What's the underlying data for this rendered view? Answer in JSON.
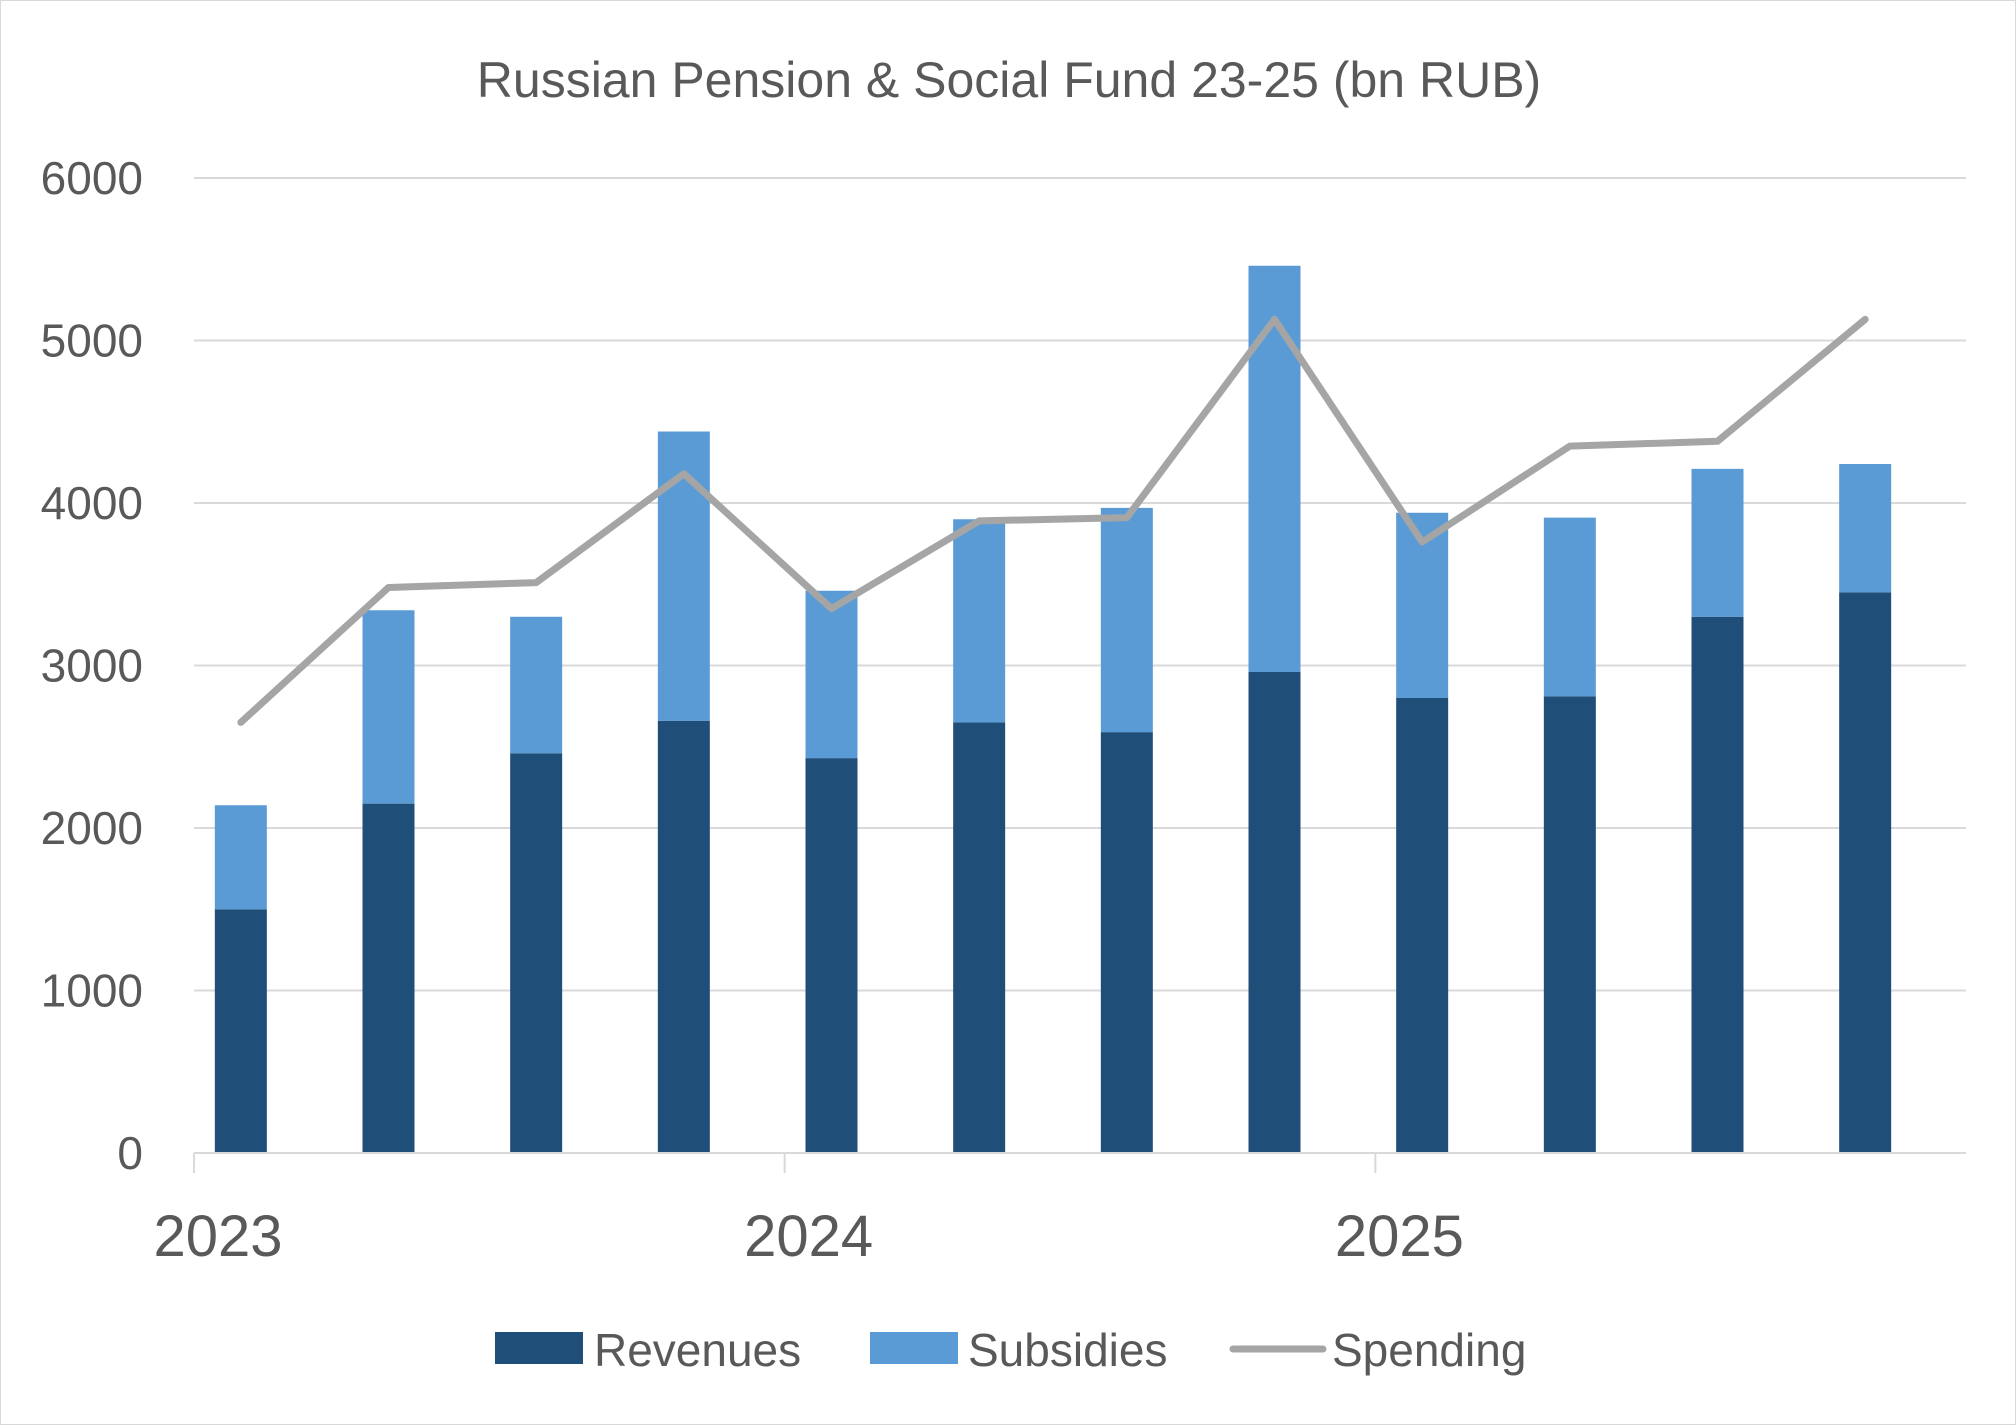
{
  "chart_data": {
    "type": "bar",
    "stacked": true,
    "title": "Russian Pension & Social Fund 23-25 (bn RUB)",
    "xlabel": "",
    "ylabel": "",
    "ylim": [
      0,
      6000
    ],
    "yticks": [
      0,
      1000,
      2000,
      3000,
      4000,
      5000,
      6000
    ],
    "x_tick_labels": [
      "2023",
      "2024",
      "2025"
    ],
    "periods": 12,
    "grid": true,
    "legend_position": "bottom",
    "series": [
      {
        "name": "Revenues",
        "kind": "bar",
        "color": "#1f4e79",
        "values": [
          1500,
          2150,
          2460,
          2660,
          2430,
          2650,
          2590,
          2960,
          2800,
          2810,
          3300,
          3450
        ]
      },
      {
        "name": "Subsidies",
        "kind": "bar",
        "color": "#5b9bd5",
        "values": [
          640,
          1190,
          840,
          1780,
          1030,
          1250,
          1380,
          2500,
          1140,
          1100,
          910,
          790
        ]
      },
      {
        "name": "Spending",
        "kind": "line",
        "color": "#a5a5a5",
        "values": [
          2650,
          3480,
          3510,
          4180,
          3350,
          3890,
          3910,
          5130,
          3760,
          4350,
          4380,
          5130
        ]
      }
    ]
  }
}
